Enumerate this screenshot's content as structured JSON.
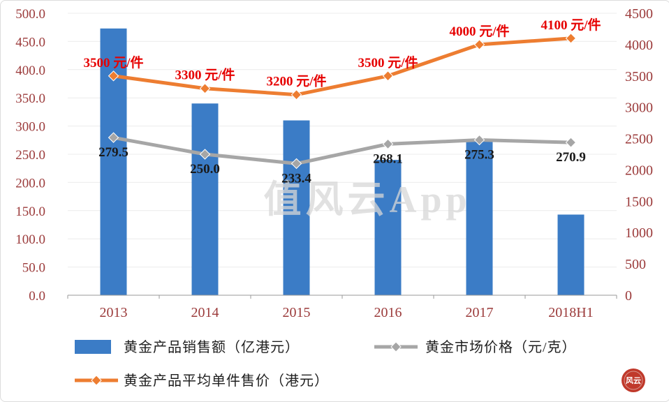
{
  "watermark": "值风云App",
  "seal": {
    "label": "风云"
  },
  "colors": {
    "bar_blue": "#3B7CC6",
    "line_gray": "#A6A6A6",
    "line_orange": "#ED7D31",
    "label_red": "#E60000",
    "label_black": "#1a1a1a",
    "axis_text": "#9b3a3a",
    "grid": "#ececec",
    "axis_line": "#9a9a9a"
  },
  "chart_data": {
    "type": "combo",
    "categories": [
      "2013",
      "2014",
      "2015",
      "2016",
      "2017",
      "2018H1"
    ],
    "left_axis": {
      "max": 500,
      "ticks": [
        "500.0",
        "450.0",
        "400.0",
        "350.0",
        "300.0",
        "250.0",
        "200.0",
        "150.0",
        "100.0",
        "50.0",
        "0.0"
      ]
    },
    "right_axis": {
      "max": 4500,
      "ticks": [
        "4500",
        "4000",
        "3500",
        "3000",
        "2500",
        "2000",
        "1500",
        "1000",
        "500",
        "0"
      ]
    },
    "grid": "horizontal",
    "legend_position": "bottom",
    "series": [
      {
        "name": "黄金产品销售额（亿港元）",
        "type": "bar",
        "axis": "left",
        "color": "#3B7CC6",
        "values": [
          473,
          340,
          310,
          240,
          277,
          143
        ]
      },
      {
        "name": "黄金市场价格（元/克）",
        "type": "line",
        "axis": "left",
        "color": "#A6A6A6",
        "values": [
          279.5,
          250.0,
          233.4,
          268.1,
          275.3,
          270.9
        ],
        "labels": [
          "279.5",
          "250.0",
          "233.4",
          "268.1",
          "275.3",
          "270.9"
        ],
        "label_color": "#1a1a1a"
      },
      {
        "name": "黄金产品平均单件售价（港元）",
        "type": "line",
        "axis": "right",
        "color": "#ED7D31",
        "values": [
          3500,
          3300,
          3200,
          3500,
          4000,
          4100
        ],
        "labels": [
          "3500 元/件",
          "3300 元/件",
          "3200 元/件",
          "3500 元/件",
          "4000 元/件",
          "4100 元/件"
        ],
        "label_color": "#E60000"
      }
    ]
  }
}
